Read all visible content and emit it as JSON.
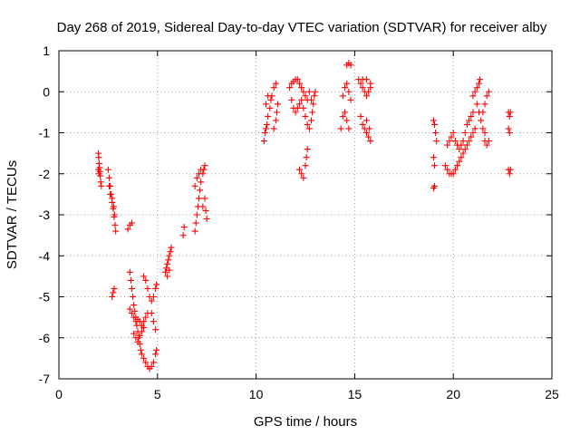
{
  "chart_data": {
    "type": "scatter",
    "title": "Day 268 of 2019, Sidereal Day-to-day VTEC variation (SDTVAR) for receiver alby",
    "xlabel": "GPS time / hours",
    "ylabel": "SDTVAR / TECUs",
    "xlim": [
      0,
      25
    ],
    "ylim": [
      -7,
      1
    ],
    "xticks": [
      "0",
      "5",
      "10",
      "15",
      "20",
      "25"
    ],
    "yticks": [
      "1",
      "0",
      "-1",
      "-2",
      "-3",
      "-4",
      "-5",
      "-6",
      "-7"
    ],
    "grid": true,
    "marker": "plus",
    "color": "#ff0000",
    "points": [
      [
        2.0,
        -1.5
      ],
      [
        2.02,
        -1.6
      ],
      [
        2.04,
        -1.75
      ],
      [
        2.06,
        -1.85
      ],
      [
        2.08,
        -1.95
      ],
      [
        2.1,
        -2.05
      ],
      [
        2.12,
        -2.2
      ],
      [
        2.15,
        -2.3
      ],
      [
        2.0,
        -1.9
      ],
      [
        2.03,
        -2.0
      ],
      [
        2.5,
        -1.9
      ],
      [
        2.55,
        -2.1
      ],
      [
        2.6,
        -2.3
      ],
      [
        2.65,
        -2.5
      ],
      [
        2.7,
        -2.7
      ],
      [
        2.75,
        -2.85
      ],
      [
        2.8,
        -3.05
      ],
      [
        2.85,
        -3.25
      ],
      [
        2.88,
        -3.4
      ],
      [
        2.55,
        -2.3
      ],
      [
        2.6,
        -2.5
      ],
      [
        2.7,
        -2.6
      ],
      [
        2.78,
        -2.8
      ],
      [
        2.82,
        -3.0
      ],
      [
        2.7,
        -5.0
      ],
      [
        2.75,
        -4.9
      ],
      [
        2.8,
        -4.8
      ],
      [
        3.5,
        -3.35
      ],
      [
        3.6,
        -3.25
      ],
      [
        3.7,
        -3.2
      ],
      [
        3.6,
        -4.4
      ],
      [
        3.65,
        -4.6
      ],
      [
        3.7,
        -4.8
      ],
      [
        3.75,
        -5.0
      ],
      [
        3.8,
        -5.2
      ],
      [
        3.85,
        -5.35
      ],
      [
        3.9,
        -5.5
      ],
      [
        3.95,
        -5.7
      ],
      [
        4.0,
        -5.85
      ],
      [
        4.05,
        -6.0
      ],
      [
        4.1,
        -6.15
      ],
      [
        4.15,
        -6.3
      ],
      [
        4.2,
        -6.4
      ],
      [
        4.3,
        -6.5
      ],
      [
        4.4,
        -6.6
      ],
      [
        4.5,
        -6.7
      ],
      [
        4.6,
        -6.75
      ],
      [
        4.7,
        -6.7
      ],
      [
        4.8,
        -6.6
      ],
      [
        4.9,
        -6.4
      ],
      [
        4.95,
        -6.3
      ],
      [
        3.6,
        -5.3
      ],
      [
        3.7,
        -5.4
      ],
      [
        3.8,
        -5.5
      ],
      [
        3.9,
        -5.6
      ],
      [
        4.0,
        -5.55
      ],
      [
        4.1,
        -5.6
      ],
      [
        4.2,
        -5.7
      ],
      [
        4.3,
        -5.6
      ],
      [
        4.4,
        -5.5
      ],
      [
        4.5,
        -5.4
      ],
      [
        3.8,
        -5.9
      ],
      [
        3.9,
        -6.0
      ],
      [
        4.0,
        -6.1
      ],
      [
        4.1,
        -5.95
      ],
      [
        4.2,
        -5.85
      ],
      [
        4.3,
        -5.75
      ],
      [
        4.3,
        -4.5
      ],
      [
        4.4,
        -4.6
      ],
      [
        4.5,
        -4.8
      ],
      [
        4.6,
        -5.0
      ],
      [
        4.7,
        -5.1
      ],
      [
        4.8,
        -5.0
      ],
      [
        4.9,
        -4.8
      ],
      [
        4.95,
        -4.7
      ],
      [
        4.7,
        -5.4
      ],
      [
        4.8,
        -5.6
      ],
      [
        4.9,
        -5.8
      ],
      [
        5.4,
        -4.4
      ],
      [
        5.45,
        -4.3
      ],
      [
        5.5,
        -4.2
      ],
      [
        5.55,
        -4.1
      ],
      [
        5.6,
        -4.0
      ],
      [
        5.65,
        -3.9
      ],
      [
        5.7,
        -3.8
      ],
      [
        5.5,
        -4.5
      ],
      [
        5.6,
        -4.35
      ],
      [
        6.3,
        -3.5
      ],
      [
        6.35,
        -3.3
      ],
      [
        6.9,
        -3.4
      ],
      [
        6.95,
        -3.2
      ],
      [
        7.0,
        -3.0
      ],
      [
        7.05,
        -2.8
      ],
      [
        7.1,
        -2.6
      ],
      [
        7.15,
        -2.4
      ],
      [
        7.2,
        -2.2
      ],
      [
        7.3,
        -2.0
      ],
      [
        7.35,
        -1.9
      ],
      [
        7.4,
        -1.8
      ],
      [
        6.9,
        -2.3
      ],
      [
        7.0,
        -2.1
      ],
      [
        7.1,
        -2.0
      ],
      [
        7.2,
        -1.9
      ],
      [
        7.4,
        -2.6
      ],
      [
        7.45,
        -2.9
      ],
      [
        7.5,
        -3.1
      ],
      [
        7.3,
        -2.8
      ],
      [
        10.4,
        -1.2
      ],
      [
        10.45,
        -1.0
      ],
      [
        10.5,
        -0.9
      ],
      [
        10.55,
        -0.8
      ],
      [
        10.6,
        -0.6
      ],
      [
        10.7,
        -0.4
      ],
      [
        10.75,
        -0.2
      ],
      [
        10.8,
        -0.1
      ],
      [
        10.9,
        0.1
      ],
      [
        11.0,
        0.2
      ],
      [
        10.9,
        -0.9
      ],
      [
        11.0,
        -0.7
      ],
      [
        11.05,
        -0.5
      ],
      [
        11.1,
        -0.3
      ],
      [
        10.5,
        -0.3
      ],
      [
        10.6,
        -0.1
      ],
      [
        11.7,
        0.1
      ],
      [
        11.8,
        0.2
      ],
      [
        11.9,
        0.25
      ],
      [
        12.0,
        0.3
      ],
      [
        12.1,
        0.3
      ],
      [
        12.2,
        0.2
      ],
      [
        12.3,
        0.1
      ],
      [
        12.4,
        0.0
      ],
      [
        12.5,
        -0.1
      ],
      [
        12.6,
        -0.2
      ],
      [
        11.8,
        -0.2
      ],
      [
        11.9,
        -0.4
      ],
      [
        12.0,
        -0.5
      ],
      [
        12.1,
        -0.4
      ],
      [
        12.2,
        -0.3
      ],
      [
        12.3,
        -0.2
      ],
      [
        12.4,
        -0.4
      ],
      [
        12.5,
        -0.6
      ],
      [
        12.6,
        -0.8
      ],
      [
        12.7,
        -0.9
      ],
      [
        12.8,
        -0.7
      ],
      [
        12.85,
        -0.5
      ],
      [
        12.9,
        -0.3
      ],
      [
        12.95,
        -0.1
      ],
      [
        13.0,
        0.0
      ],
      [
        12.7,
        0.0
      ],
      [
        12.8,
        -0.2
      ],
      [
        12.2,
        -1.9
      ],
      [
        12.3,
        -2.0
      ],
      [
        12.4,
        -2.1
      ],
      [
        12.5,
        -1.8
      ],
      [
        12.55,
        -1.6
      ],
      [
        12.6,
        -1.4
      ],
      [
        14.3,
        -0.9
      ],
      [
        14.4,
        -0.6
      ],
      [
        14.5,
        -0.5
      ],
      [
        14.6,
        -0.7
      ],
      [
        14.7,
        -0.9
      ],
      [
        14.4,
        -0.1
      ],
      [
        14.5,
        0.1
      ],
      [
        14.6,
        0.2
      ],
      [
        14.7,
        0.0
      ],
      [
        14.8,
        -0.2
      ],
      [
        14.6,
        0.65
      ],
      [
        14.7,
        0.7
      ],
      [
        14.8,
        0.65
      ],
      [
        15.2,
        0.3
      ],
      [
        15.3,
        0.2
      ],
      [
        15.4,
        0.1
      ],
      [
        15.5,
        0.0
      ],
      [
        15.6,
        -0.1
      ],
      [
        15.7,
        0.0
      ],
      [
        15.8,
        0.1
      ],
      [
        15.4,
        0.3
      ],
      [
        15.6,
        0.3
      ],
      [
        15.8,
        0.2
      ],
      [
        15.3,
        -0.6
      ],
      [
        15.4,
        -0.8
      ],
      [
        15.5,
        -0.9
      ],
      [
        15.6,
        -1.0
      ],
      [
        15.7,
        -1.1
      ],
      [
        15.8,
        -1.2
      ],
      [
        15.6,
        -0.7
      ],
      [
        15.75,
        -0.9
      ],
      [
        19.0,
        -0.7
      ],
      [
        19.05,
        -0.8
      ],
      [
        19.1,
        -1.0
      ],
      [
        19.15,
        -1.2
      ],
      [
        19.0,
        -1.6
      ],
      [
        19.05,
        -1.8
      ],
      [
        19.0,
        -2.35
      ],
      [
        19.05,
        -2.3
      ],
      [
        19.6,
        -1.8
      ],
      [
        19.7,
        -1.9
      ],
      [
        19.8,
        -2.0
      ],
      [
        19.9,
        -2.0
      ],
      [
        20.0,
        -2.0
      ],
      [
        20.1,
        -1.9
      ],
      [
        19.7,
        -1.3
      ],
      [
        19.8,
        -1.2
      ],
      [
        19.9,
        -1.1
      ],
      [
        20.0,
        -1.0
      ],
      [
        20.1,
        -1.2
      ],
      [
        20.2,
        -1.3
      ],
      [
        20.3,
        -1.4
      ],
      [
        20.4,
        -1.3
      ],
      [
        20.5,
        -1.2
      ],
      [
        20.6,
        -1.0
      ],
      [
        20.7,
        -0.8
      ],
      [
        20.8,
        -0.7
      ],
      [
        20.9,
        -0.6
      ],
      [
        21.0,
        -0.5
      ],
      [
        20.2,
        -1.8
      ],
      [
        20.3,
        -1.7
      ],
      [
        20.4,
        -1.6
      ],
      [
        20.5,
        -1.5
      ],
      [
        20.6,
        -1.4
      ],
      [
        20.7,
        -1.3
      ],
      [
        20.8,
        -1.2
      ],
      [
        20.9,
        -1.1
      ],
      [
        21.0,
        -1.0
      ],
      [
        21.1,
        -0.9
      ],
      [
        21.0,
        -0.1
      ],
      [
        21.1,
        0.0
      ],
      [
        21.2,
        0.1
      ],
      [
        21.3,
        0.2
      ],
      [
        21.35,
        0.3
      ],
      [
        21.2,
        -0.3
      ],
      [
        21.3,
        -0.5
      ],
      [
        21.4,
        -0.7
      ],
      [
        21.5,
        -0.9
      ],
      [
        21.6,
        -1.0
      ],
      [
        21.5,
        -0.5
      ],
      [
        21.6,
        -0.3
      ],
      [
        21.7,
        -0.1
      ],
      [
        21.8,
        0.0
      ],
      [
        21.6,
        -1.2
      ],
      [
        21.7,
        -1.3
      ],
      [
        21.8,
        -1.2
      ],
      [
        22.8,
        -0.5
      ],
      [
        22.85,
        -0.6
      ],
      [
        22.9,
        -0.5
      ],
      [
        22.8,
        -0.9
      ],
      [
        22.85,
        -1.0
      ],
      [
        22.8,
        -1.9
      ],
      [
        22.85,
        -2.0
      ],
      [
        22.9,
        -1.9
      ]
    ]
  }
}
